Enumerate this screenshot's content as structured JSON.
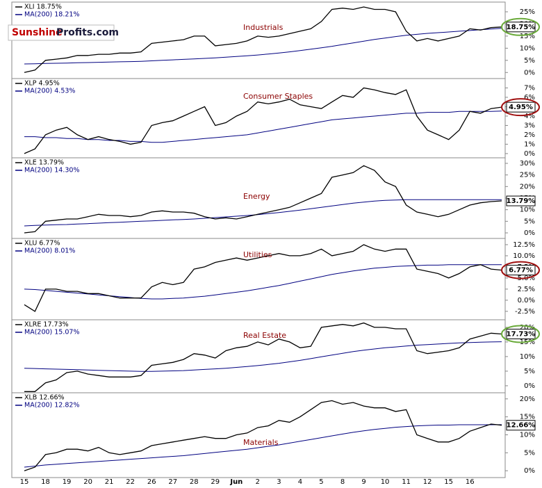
{
  "logo": {
    "brand": "Sunshine",
    "site": "Profits.com"
  },
  "chart_data": [
    {
      "type": "line",
      "title": "Industrials",
      "ylim": [
        -2.5,
        29
      ],
      "grid": false,
      "yticks": [
        {
          "value": 0,
          "label": "0%"
        },
        {
          "value": 5,
          "label": "5%"
        },
        {
          "value": 10,
          "label": "10%"
        },
        {
          "value": 15,
          "label": "15%"
        },
        {
          "value": 20,
          "label": "20%"
        },
        {
          "value": 25,
          "label": "25%"
        }
      ],
      "end_label": "18.75%",
      "series": [
        {
          "name": "XLI 18.75%",
          "color": "#000000",
          "values": [
            0,
            1,
            5,
            5.5,
            6,
            7,
            7,
            7.5,
            7.5,
            8,
            8,
            8.5,
            12,
            12.5,
            13,
            13.5,
            15,
            15,
            11,
            11.5,
            12,
            13,
            15,
            14.5,
            15,
            16,
            17,
            18,
            21,
            26,
            26.5,
            26,
            27,
            26,
            26,
            25,
            17,
            13,
            14,
            13,
            14,
            15,
            18,
            17.5,
            18.5,
            18.75
          ]
        },
        {
          "name": "MA(200) 18.21%",
          "color": "#000080",
          "values": [
            3.5,
            3.6,
            3.7,
            3.8,
            3.9,
            4.0,
            4.1,
            4.2,
            4.3,
            4.4,
            4.5,
            4.6,
            4.8,
            5.0,
            5.2,
            5.4,
            5.6,
            5.8,
            6.0,
            6.3,
            6.6,
            6.9,
            7.2,
            7.6,
            8.0,
            8.5,
            9.0,
            9.6,
            10.2,
            10.8,
            11.5,
            12.2,
            12.9,
            13.6,
            14.2,
            14.8,
            15.3,
            15.7,
            16.1,
            16.4,
            16.7,
            17.0,
            17.3,
            17.6,
            17.9,
            18.21
          ]
        }
      ]
    },
    {
      "type": "line",
      "title": "Consumer Staples",
      "ylim": [
        -0.45,
        8
      ],
      "grid": false,
      "yticks": [
        {
          "value": 0,
          "label": "0%"
        },
        {
          "value": 1,
          "label": "1%"
        },
        {
          "value": 2,
          "label": "2%"
        },
        {
          "value": 3,
          "label": "3%"
        },
        {
          "value": 4,
          "label": "4%"
        },
        {
          "value": 5,
          "label": "5%"
        },
        {
          "value": 6,
          "label": "6%"
        },
        {
          "value": 7,
          "label": "7%"
        }
      ],
      "end_label": "4.95%",
      "series": [
        {
          "name": "XLP 4.95%",
          "color": "#000000",
          "values": [
            0,
            0.5,
            2,
            2.5,
            2.8,
            2,
            1.5,
            1.8,
            1.5,
            1.3,
            1,
            1.2,
            3,
            3.3,
            3.5,
            4,
            4.5,
            5,
            3,
            3.3,
            4,
            4.5,
            5.5,
            5.3,
            5.5,
            5.8,
            5.2,
            5,
            4.8,
            5.5,
            6.2,
            6,
            7,
            6.8,
            6.5,
            6.3,
            6.8,
            4,
            2.5,
            2,
            1.5,
            2.5,
            4.5,
            4.3,
            4.8,
            4.95
          ]
        },
        {
          "name": "MA(200) 4.53%",
          "color": "#000080",
          "values": [
            1.8,
            1.8,
            1.7,
            1.7,
            1.6,
            1.6,
            1.5,
            1.5,
            1.4,
            1.4,
            1.3,
            1.3,
            1.2,
            1.2,
            1.3,
            1.4,
            1.5,
            1.6,
            1.7,
            1.8,
            1.9,
            2.0,
            2.2,
            2.4,
            2.6,
            2.8,
            3.0,
            3.2,
            3.4,
            3.6,
            3.7,
            3.8,
            3.9,
            4.0,
            4.1,
            4.2,
            4.3,
            4.3,
            4.4,
            4.4,
            4.4,
            4.5,
            4.5,
            4.5,
            4.5,
            4.53
          ]
        }
      ]
    },
    {
      "type": "line",
      "title": "Energy",
      "ylim": [
        -2.4,
        32.4
      ],
      "grid": false,
      "yticks": [
        {
          "value": 0,
          "label": "0%"
        },
        {
          "value": 5,
          "label": "5%"
        },
        {
          "value": 10,
          "label": "10%"
        },
        {
          "value": 15,
          "label": "15%"
        },
        {
          "value": 20,
          "label": "20%"
        },
        {
          "value": 25,
          "label": "25%"
        },
        {
          "value": 30,
          "label": "30%"
        }
      ],
      "end_label": "13.79%",
      "series": [
        {
          "name": "XLE 13.79%",
          "color": "#000000",
          "values": [
            0,
            0.5,
            5,
            5.5,
            6,
            6,
            7,
            8,
            7.5,
            7.5,
            7,
            7.5,
            9,
            9.5,
            9,
            9,
            8.5,
            7,
            6,
            6.5,
            6,
            7,
            8,
            9,
            10,
            11,
            13,
            15,
            17,
            24,
            25,
            26,
            29,
            27,
            22,
            20,
            12,
            9,
            8,
            7,
            8,
            10,
            12,
            13,
            13.5,
            13.79
          ]
        },
        {
          "name": "MA(200) 14.30%",
          "color": "#000080",
          "values": [
            3,
            3.2,
            3.4,
            3.5,
            3.6,
            3.8,
            4.0,
            4.2,
            4.4,
            4.6,
            4.8,
            5.0,
            5.2,
            5.4,
            5.6,
            5.8,
            6.0,
            6.3,
            6.6,
            6.9,
            7.2,
            7.5,
            7.9,
            8.3,
            8.8,
            9.3,
            9.8,
            10.4,
            11.0,
            11.6,
            12.2,
            12.8,
            13.3,
            13.7,
            14.0,
            14.2,
            14.3,
            14.3,
            14.3,
            14.3,
            14.3,
            14.3,
            14.3,
            14.3,
            14.3,
            14.3
          ]
        }
      ]
    },
    {
      "type": "line",
      "title": "Utilities",
      "ylim": [
        -4.4,
        13.9
      ],
      "grid": false,
      "yticks": [
        {
          "value": -2.5,
          "label": "-2.5%"
        },
        {
          "value": 0,
          "label": "0.0%"
        },
        {
          "value": 2.5,
          "label": "2.5%"
        },
        {
          "value": 5,
          "label": "5.0%"
        },
        {
          "value": 7.5,
          "label": "7.5%"
        },
        {
          "value": 10,
          "label": "10.0%"
        },
        {
          "value": 12.5,
          "label": "12.5%"
        }
      ],
      "end_label": "6.77%",
      "series": [
        {
          "name": "XLU 6.77%",
          "color": "#000000",
          "values": [
            -1,
            -2.5,
            2.5,
            2.5,
            2,
            2,
            1.5,
            1.5,
            1,
            0.5,
            0.5,
            0.5,
            3,
            4,
            3.5,
            4,
            7,
            7.5,
            8.5,
            9,
            9.5,
            9,
            9.5,
            10,
            10.5,
            10,
            10,
            10.5,
            11.5,
            10,
            10.5,
            11,
            12.5,
            11.5,
            11,
            11.5,
            11.5,
            7,
            6.5,
            6,
            5,
            6,
            7.5,
            8,
            7,
            6.77
          ]
        },
        {
          "name": "MA(200) 8.01%",
          "color": "#000080",
          "values": [
            2.5,
            2.4,
            2.2,
            2.0,
            1.8,
            1.6,
            1.4,
            1.2,
            1.0,
            0.8,
            0.6,
            0.4,
            0.3,
            0.3,
            0.4,
            0.5,
            0.7,
            0.9,
            1.2,
            1.5,
            1.8,
            2.1,
            2.5,
            2.9,
            3.3,
            3.8,
            4.3,
            4.8,
            5.3,
            5.8,
            6.2,
            6.6,
            6.9,
            7.2,
            7.4,
            7.6,
            7.7,
            7.8,
            7.9,
            7.9,
            8.0,
            8.0,
            8.0,
            8.0,
            8.0,
            8.01
          ]
        }
      ]
    },
    {
      "type": "line",
      "title": "Real Estate",
      "ylim": [
        -2.4,
        22.6
      ],
      "grid": false,
      "yticks": [
        {
          "value": 0,
          "label": "0%"
        },
        {
          "value": 5,
          "label": "5%"
        },
        {
          "value": 10,
          "label": "10%"
        },
        {
          "value": 15,
          "label": "15%"
        },
        {
          "value": 20,
          "label": "20%"
        }
      ],
      "end_label": "17.73%",
      "series": [
        {
          "name": "XLRE 17.73%",
          "color": "#000000",
          "values": [
            -2,
            -2,
            1,
            2,
            4.5,
            5,
            4,
            3.5,
            3,
            3,
            3,
            3.5,
            7,
            7.5,
            8,
            9,
            11,
            10.5,
            9.5,
            12,
            13,
            13.5,
            15,
            14,
            16,
            15,
            13,
            13.5,
            20,
            20.5,
            21,
            20.5,
            21.5,
            20,
            20,
            19.5,
            19.5,
            12,
            11,
            11.5,
            12,
            13,
            16,
            17,
            18,
            17.73
          ]
        },
        {
          "name": "MA(200) 15.07%",
          "color": "#000080",
          "values": [
            6,
            5.9,
            5.8,
            5.7,
            5.6,
            5.5,
            5.4,
            5.3,
            5.2,
            5.1,
            5.0,
            4.9,
            4.9,
            5.0,
            5.1,
            5.2,
            5.4,
            5.6,
            5.8,
            6.0,
            6.3,
            6.6,
            6.9,
            7.3,
            7.7,
            8.2,
            8.7,
            9.3,
            9.9,
            10.5,
            11.1,
            11.7,
            12.2,
            12.6,
            13.0,
            13.3,
            13.6,
            13.9,
            14.1,
            14.3,
            14.5,
            14.7,
            14.8,
            14.9,
            15.0,
            15.07
          ]
        }
      ]
    },
    {
      "type": "line",
      "title": "Materials",
      "ylim": [
        -1.9,
        21.7
      ],
      "grid": false,
      "yticks": [
        {
          "value": 0,
          "label": "0%"
        },
        {
          "value": 5,
          "label": "5%"
        },
        {
          "value": 10,
          "label": "10%"
        },
        {
          "value": 15,
          "label": "15%"
        },
        {
          "value": 20,
          "label": "20%"
        }
      ],
      "end_label": "12.66%",
      "categories": [
        "15",
        null,
        "18",
        null,
        "19",
        null,
        "20",
        null,
        "21",
        null,
        "22",
        null,
        "26",
        null,
        "27",
        null,
        "28",
        null,
        "29",
        null,
        "Jun",
        null,
        "2",
        null,
        "3",
        null,
        "4",
        null,
        "5",
        null,
        "8",
        null,
        "9",
        null,
        "10",
        null,
        "11",
        null,
        "12",
        null,
        "15",
        null,
        "16",
        null,
        null,
        null
      ],
      "series": [
        {
          "name": "XLB 12.66%",
          "color": "#000000",
          "values": [
            0,
            1,
            4.5,
            5,
            6,
            6,
            5.5,
            6.5,
            5,
            4.5,
            5,
            5.5,
            7,
            7.5,
            8,
            8.5,
            9,
            9.5,
            9,
            9,
            10,
            10.5,
            12,
            12.5,
            14,
            13.5,
            15,
            17,
            19,
            19.5,
            18.5,
            19,
            18,
            17.5,
            17.5,
            16.5,
            17,
            10,
            9,
            8,
            8,
            9,
            11,
            12,
            13,
            12.66
          ]
        },
        {
          "name": "MA(200) 12.82%",
          "color": "#000080",
          "values": [
            1.0,
            1.3,
            1.6,
            1.8,
            2.0,
            2.2,
            2.4,
            2.6,
            2.8,
            3.0,
            3.2,
            3.4,
            3.6,
            3.8,
            4.0,
            4.2,
            4.5,
            4.8,
            5.1,
            5.4,
            5.7,
            6.0,
            6.4,
            6.8,
            7.2,
            7.7,
            8.2,
            8.7,
            9.2,
            9.7,
            10.2,
            10.7,
            11.1,
            11.5,
            11.8,
            12.1,
            12.3,
            12.5,
            12.6,
            12.7,
            12.7,
            12.8,
            12.8,
            12.8,
            12.8,
            12.82
          ]
        }
      ]
    }
  ]
}
